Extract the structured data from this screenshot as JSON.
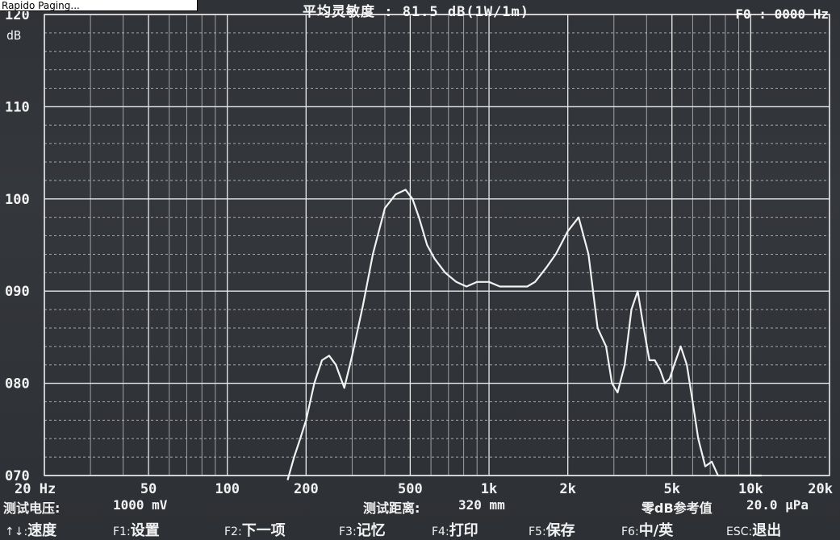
{
  "header": {
    "title_fragment": "平均灵敏度 : 81.5 dB(1W/1m)",
    "f0_label": "F0 : 0000 Hz",
    "top_label": "Rapido Paging..."
  },
  "chart_data": {
    "type": "line",
    "title": "",
    "xlabel": "",
    "ylabel": "dB",
    "x_scale": "log",
    "xlim": [
      20,
      20000
    ],
    "ylim": [
      70,
      120
    ],
    "x_ticks": [
      20,
      50,
      100,
      200,
      500,
      1000,
      2000,
      5000,
      10000,
      20000
    ],
    "x_tick_labels": [
      "20 Hz",
      "50",
      "100",
      "200",
      "500",
      "1k",
      "2k",
      "5k",
      "10k",
      "20k"
    ],
    "y_ticks": [
      70,
      80,
      90,
      100,
      110,
      120
    ],
    "y_tick_labels": [
      "070",
      "080",
      "090",
      "100",
      "110",
      "120"
    ],
    "y_unit_label": "dB",
    "grid": true,
    "series": [
      {
        "color": "#f2f2f2",
        "x": [
          170,
          180,
          190,
          200,
          215,
          230,
          245,
          260,
          280,
          300,
          330,
          360,
          400,
          440,
          480,
          510,
          540,
          580,
          620,
          680,
          750,
          820,
          900,
          1000,
          1100,
          1200,
          1300,
          1400,
          1500,
          1650,
          1800,
          2000,
          2200,
          2400,
          2600,
          2800,
          2950,
          3100,
          3300,
          3500,
          3700,
          3900,
          4100,
          4300,
          4500,
          4700,
          4900,
          5100,
          5400,
          5700,
          6000,
          6300,
          6700,
          7100,
          7500,
          7900,
          8300,
          8700,
          9100,
          9500,
          10000,
          10500,
          11000
        ],
        "y": [
          69.5,
          72,
          74,
          76,
          80,
          82.5,
          83,
          82,
          79.5,
          83,
          88.5,
          94,
          99,
          100.5,
          101,
          100,
          98,
          95,
          93.5,
          92,
          91,
          90.5,
          91,
          91,
          90.5,
          90.5,
          90.5,
          90.5,
          91,
          92.5,
          94,
          96.5,
          98,
          94,
          86,
          84,
          80,
          79,
          82,
          88,
          90,
          86,
          82.5,
          82.5,
          81.5,
          80,
          80.5,
          82,
          84,
          82,
          78,
          74,
          71,
          71.5,
          70,
          70,
          70,
          70,
          70,
          70,
          70,
          70,
          70
        ]
      }
    ]
  },
  "footer": {
    "voltage_label": "测试电压:",
    "voltage_value": "1000 mV",
    "distance_label": "测试距离:",
    "distance_value": "320 mm",
    "ref_label": "零dB参考值",
    "ref_value": "20.0 μPa",
    "keys": [
      {
        "key": "↑↓:",
        "label": "速度"
      },
      {
        "key": "F1:",
        "label": "设置"
      },
      {
        "key": "F2:",
        "label": "下一项"
      },
      {
        "key": "F3:",
        "label": "记忆"
      },
      {
        "key": "F4:",
        "label": "打印"
      },
      {
        "key": "F5:",
        "label": "保存"
      },
      {
        "key": "F6:",
        "label": "中/英"
      },
      {
        "key": "ESC:",
        "label": "退出"
      }
    ]
  },
  "colors": {
    "background": "#313438",
    "grid_major": "#e8e8e8",
    "grid_minor": "#cfcfcf",
    "curve": "#f2f2f2",
    "text": "#f2f2f2"
  }
}
